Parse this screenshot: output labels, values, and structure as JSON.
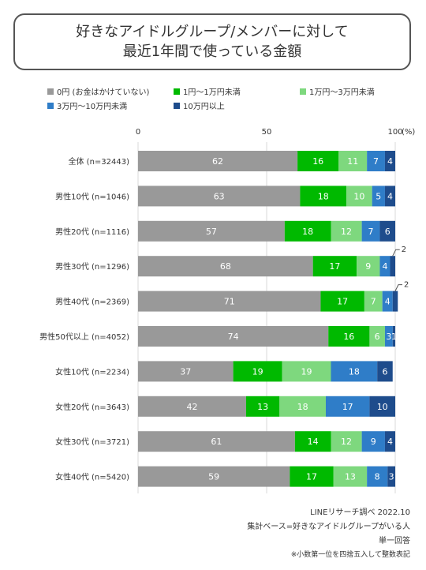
{
  "header": {
    "title_line1": "好きなアイドルグループ/メンバーに対して",
    "title_line2": "最近1年間で使っている金額"
  },
  "legend": [
    {
      "label": "0円 (お金はかけていない)",
      "color": "#999999"
    },
    {
      "label": "1円～1万円未満",
      "color": "#00B900"
    },
    {
      "label": "1万円～3万円未満",
      "color": "#7ED87E"
    },
    {
      "label": "3万円～10万円未満",
      "color": "#2F7DC8"
    },
    {
      "label": "10万円以上",
      "color": "#1E4C8C"
    }
  ],
  "footer": {
    "source": "LINEリサーチ調べ 2022.10",
    "base": "集計ベース=好きなアイドルグループがいる人",
    "answer_type": "単一回答",
    "note": "※小数第一位を四捨五入して整数表記"
  },
  "chart_data": {
    "type": "bar",
    "orientation": "horizontal",
    "stacked": true,
    "xlim": [
      0,
      100
    ],
    "x_ticks": [
      "0",
      "50",
      "100"
    ],
    "x_unit": "(%)",
    "grid": true,
    "categories": [
      "全体 (n=32443)",
      "男性10代 (n=1046)",
      "男性20代 (n=1116)",
      "男性30代 (n=1296)",
      "男性40代 (n=2369)",
      "男性50代以上 (n=4052)",
      "女性10代 (n=2234)",
      "女性20代 (n=3643)",
      "女性30代 (n=3721)",
      "女性40代 (n=5420)"
    ],
    "series": [
      {
        "name": "0円 (お金はかけていない)",
        "color": "#999999",
        "label_color": "#ffffff",
        "values": [
          62,
          63,
          57,
          68,
          71,
          74,
          37,
          42,
          61,
          59
        ]
      },
      {
        "name": "1円～1万円未満",
        "color": "#00B900",
        "label_color": "#ffffff",
        "values": [
          16,
          18,
          18,
          17,
          17,
          16,
          19,
          13,
          14,
          17
        ]
      },
      {
        "name": "1万円～3万円未満",
        "color": "#7ED87E",
        "label_color": "#ffffff",
        "values": [
          11,
          10,
          12,
          9,
          7,
          6,
          19,
          18,
          12,
          13
        ]
      },
      {
        "name": "3万円～10万円未満",
        "color": "#2F7DC8",
        "label_color": "#ffffff",
        "values": [
          7,
          5,
          7,
          4,
          4,
          3,
          18,
          17,
          9,
          8
        ]
      },
      {
        "name": "10万円以上",
        "color": "#1E4C8C",
        "label_color": "#ffffff",
        "values": [
          4,
          4,
          6,
          2,
          2,
          1,
          6,
          10,
          4,
          3
        ]
      }
    ],
    "outside_labels": [
      {
        "category_index": 3,
        "series_index": 4,
        "text": "2"
      },
      {
        "category_index": 4,
        "series_index": 4,
        "text": "2"
      }
    ]
  }
}
